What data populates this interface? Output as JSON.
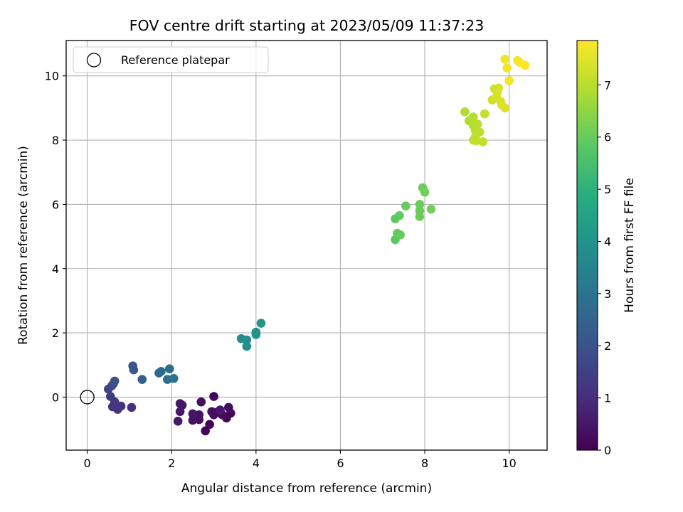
{
  "chart_data": {
    "type": "scatter",
    "title": "FOV centre drift starting at 2023/05/09 11:37:23",
    "xlabel": "Angular distance from reference (arcmin)",
    "ylabel": "Rotation from reference (arcmin)",
    "xlim": [
      -0.5,
      10.9
    ],
    "ylim": [
      -1.65,
      11.1
    ],
    "xticks": [
      "0",
      "2",
      "4",
      "6",
      "8",
      "10"
    ],
    "yticks": [
      "0",
      "2",
      "4",
      "6",
      "8",
      "10"
    ],
    "grid": true,
    "legend": {
      "placement": "top-left",
      "entries": [
        "Reference platepar"
      ]
    },
    "reference_point": {
      "x": 0,
      "y": 0
    },
    "colorbar": {
      "label": "Hours from first FF file",
      "range": [
        0,
        7.85
      ],
      "ticks": [
        "0",
        "1",
        "2",
        "3",
        "4",
        "5",
        "6",
        "7"
      ],
      "colormap": "viridis"
    },
    "points": [
      {
        "x": 2.8,
        "y": -1.05,
        "c": 0.05
      },
      {
        "x": 2.9,
        "y": -0.85,
        "c": 0.1
      },
      {
        "x": 3.0,
        "y": 0.02,
        "c": 0.12
      },
      {
        "x": 3.3,
        "y": -0.65,
        "c": 0.15
      },
      {
        "x": 3.4,
        "y": -0.5,
        "c": 0.18
      },
      {
        "x": 3.35,
        "y": -0.32,
        "c": 0.2
      },
      {
        "x": 3.2,
        "y": -0.55,
        "c": 0.22
      },
      {
        "x": 3.1,
        "y": -0.45,
        "c": 0.25
      },
      {
        "x": 3.0,
        "y": -0.55,
        "c": 0.27
      },
      {
        "x": 2.95,
        "y": -0.45,
        "c": 0.3
      },
      {
        "x": 2.7,
        "y": -0.15,
        "c": 0.32
      },
      {
        "x": 2.65,
        "y": -0.55,
        "c": 0.35
      },
      {
        "x": 2.65,
        "y": -0.7,
        "c": 0.38
      },
      {
        "x": 2.5,
        "y": -0.72,
        "c": 0.4
      },
      {
        "x": 2.5,
        "y": -0.52,
        "c": 0.42
      },
      {
        "x": 2.25,
        "y": -0.25,
        "c": 0.45
      },
      {
        "x": 2.2,
        "y": -0.2,
        "c": 0.48
      },
      {
        "x": 2.2,
        "y": -0.45,
        "c": 0.5
      },
      {
        "x": 2.15,
        "y": -0.75,
        "c": 0.52
      },
      {
        "x": 3.15,
        "y": -0.4,
        "c": 0.55
      },
      {
        "x": 1.05,
        "y": -0.32,
        "c": 1.1
      },
      {
        "x": 0.8,
        "y": -0.28,
        "c": 1.15
      },
      {
        "x": 0.72,
        "y": -0.38,
        "c": 1.2
      },
      {
        "x": 0.6,
        "y": -0.3,
        "c": 1.25
      },
      {
        "x": 0.65,
        "y": -0.15,
        "c": 1.3
      },
      {
        "x": 0.55,
        "y": 0.02,
        "c": 1.35
      },
      {
        "x": 0.5,
        "y": 0.25,
        "c": 1.6
      },
      {
        "x": 0.58,
        "y": 0.35,
        "c": 1.7
      },
      {
        "x": 0.62,
        "y": 0.42,
        "c": 1.8
      },
      {
        "x": 0.65,
        "y": 0.5,
        "c": 1.9
      },
      {
        "x": 1.08,
        "y": 0.97,
        "c": 2.05
      },
      {
        "x": 1.1,
        "y": 0.85,
        "c": 2.15
      },
      {
        "x": 1.3,
        "y": 0.55,
        "c": 2.4
      },
      {
        "x": 1.7,
        "y": 0.75,
        "c": 2.6
      },
      {
        "x": 1.75,
        "y": 0.8,
        "c": 2.7
      },
      {
        "x": 1.95,
        "y": 0.88,
        "c": 2.8
      },
      {
        "x": 1.9,
        "y": 0.55,
        "c": 2.85
      },
      {
        "x": 2.05,
        "y": 0.58,
        "c": 2.9
      },
      {
        "x": 3.65,
        "y": 1.82,
        "c": 3.8
      },
      {
        "x": 3.78,
        "y": 1.58,
        "c": 3.85
      },
      {
        "x": 3.78,
        "y": 1.78,
        "c": 3.9
      },
      {
        "x": 4.0,
        "y": 1.95,
        "c": 3.95
      },
      {
        "x": 4.0,
        "y": 2.02,
        "c": 4.0
      },
      {
        "x": 4.12,
        "y": 2.3,
        "c": 4.05
      },
      {
        "x": 7.3,
        "y": 4.9,
        "c": 5.85
      },
      {
        "x": 7.3,
        "y": 5.55,
        "c": 5.9
      },
      {
        "x": 7.4,
        "y": 5.65,
        "c": 5.92
      },
      {
        "x": 7.35,
        "y": 5.1,
        "c": 5.95
      },
      {
        "x": 7.42,
        "y": 5.05,
        "c": 5.98
      },
      {
        "x": 7.55,
        "y": 5.95,
        "c": 6.0
      },
      {
        "x": 7.88,
        "y": 6.0,
        "c": 6.02
      },
      {
        "x": 7.88,
        "y": 5.8,
        "c": 6.05
      },
      {
        "x": 7.88,
        "y": 5.62,
        "c": 6.08
      },
      {
        "x": 7.95,
        "y": 6.52,
        "c": 6.1
      },
      {
        "x": 8.0,
        "y": 6.38,
        "c": 6.12
      },
      {
        "x": 8.15,
        "y": 5.85,
        "c": 6.15
      },
      {
        "x": 8.95,
        "y": 8.88,
        "c": 6.9
      },
      {
        "x": 9.05,
        "y": 8.6,
        "c": 6.92
      },
      {
        "x": 9.15,
        "y": 8.72,
        "c": 6.95
      },
      {
        "x": 9.15,
        "y": 8.45,
        "c": 6.97
      },
      {
        "x": 9.2,
        "y": 8.3,
        "c": 7.0
      },
      {
        "x": 9.25,
        "y": 8.5,
        "c": 7.02
      },
      {
        "x": 9.3,
        "y": 8.25,
        "c": 7.05
      },
      {
        "x": 9.2,
        "y": 8.1,
        "c": 7.07
      },
      {
        "x": 9.15,
        "y": 8.0,
        "c": 7.1
      },
      {
        "x": 9.22,
        "y": 7.98,
        "c": 7.12
      },
      {
        "x": 9.38,
        "y": 7.95,
        "c": 7.14
      },
      {
        "x": 9.42,
        "y": 8.82,
        "c": 7.16
      },
      {
        "x": 9.6,
        "y": 9.25,
        "c": 7.3
      },
      {
        "x": 9.65,
        "y": 9.6,
        "c": 7.32
      },
      {
        "x": 9.75,
        "y": 9.62,
        "c": 7.34
      },
      {
        "x": 9.7,
        "y": 9.35,
        "c": 7.36
      },
      {
        "x": 9.72,
        "y": 9.5,
        "c": 7.38
      },
      {
        "x": 9.8,
        "y": 9.2,
        "c": 7.4
      },
      {
        "x": 9.82,
        "y": 9.1,
        "c": 7.42
      },
      {
        "x": 9.9,
        "y": 9.0,
        "c": 7.44
      },
      {
        "x": 9.9,
        "y": 10.52,
        "c": 7.65
      },
      {
        "x": 9.95,
        "y": 10.25,
        "c": 7.7
      },
      {
        "x": 10.0,
        "y": 9.85,
        "c": 7.72
      },
      {
        "x": 10.2,
        "y": 10.48,
        "c": 7.76
      },
      {
        "x": 10.25,
        "y": 10.42,
        "c": 7.8
      },
      {
        "x": 10.38,
        "y": 10.33,
        "c": 7.85
      }
    ]
  }
}
